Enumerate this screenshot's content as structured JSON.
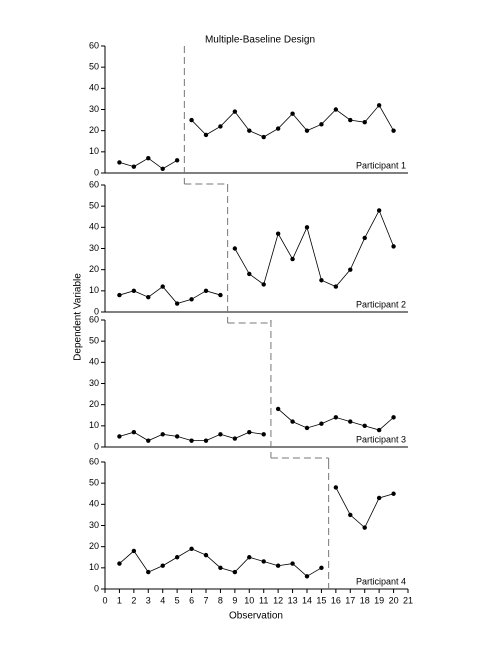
{
  "title": "Multiple-Baseline Design",
  "x_label": "Observation",
  "y_label": "Dependent Variable",
  "xlim": [
    0,
    21
  ],
  "xticks": [
    0,
    1,
    2,
    3,
    4,
    5,
    6,
    7,
    8,
    9,
    10,
    11,
    12,
    13,
    14,
    15,
    16,
    17,
    18,
    19,
    20,
    21
  ],
  "phase_changes": [
    5.5,
    8.5,
    11.5,
    15.5
  ],
  "chart_data": [
    {
      "type": "line",
      "label": "Participant 1",
      "color": "#000000",
      "ylim": [
        0,
        60
      ],
      "yticks": [
        0,
        10,
        20,
        30,
        40,
        50,
        60
      ],
      "series": [
        {
          "x": [
            1,
            2,
            3,
            4,
            5
          ],
          "values": [
            5,
            3,
            7,
            2,
            6
          ]
        },
        {
          "x": [
            6,
            7,
            8,
            9,
            10,
            11,
            12,
            13,
            14,
            15,
            16,
            17,
            18,
            19,
            20
          ],
          "values": [
            25,
            18,
            22,
            29,
            20,
            17,
            21,
            28,
            20,
            23,
            30,
            25,
            24,
            32,
            20
          ]
        }
      ]
    },
    {
      "type": "line",
      "label": "Participant 2",
      "color": "#000000",
      "ylim": [
        0,
        60
      ],
      "yticks": [
        0,
        10,
        20,
        30,
        40,
        50,
        60
      ],
      "series": [
        {
          "x": [
            1,
            2,
            3,
            4,
            5,
            6,
            7,
            8
          ],
          "values": [
            8,
            10,
            7,
            12,
            4,
            6,
            10,
            8
          ]
        },
        {
          "x": [
            9,
            10,
            11,
            12,
            13,
            14,
            15,
            16,
            17,
            18,
            19,
            20
          ],
          "values": [
            30,
            18,
            13,
            37,
            25,
            40,
            15,
            12,
            20,
            35,
            48,
            31
          ]
        }
      ]
    },
    {
      "type": "line",
      "label": "Participant 3",
      "color": "#000000",
      "ylim": [
        0,
        60
      ],
      "yticks": [
        0,
        10,
        20,
        30,
        40,
        50,
        60
      ],
      "series": [
        {
          "x": [
            1,
            2,
            3,
            4,
            5,
            6,
            7,
            8,
            9,
            10,
            11
          ],
          "values": [
            5,
            7,
            3,
            6,
            5,
            3,
            3,
            6,
            4,
            7,
            6
          ]
        },
        {
          "x": [
            12,
            13,
            14,
            15,
            16,
            17,
            18,
            19,
            20
          ],
          "values": [
            18,
            12,
            9,
            11,
            14,
            12,
            10,
            8,
            14
          ]
        }
      ]
    },
    {
      "type": "line",
      "label": "Participant 4",
      "color": "#000000",
      "ylim": [
        0,
        60
      ],
      "yticks": [
        0,
        10,
        20,
        30,
        40,
        50,
        60
      ],
      "series": [
        {
          "x": [
            1,
            2,
            3,
            4,
            5,
            6,
            7,
            8,
            9,
            10,
            11,
            12,
            13,
            14,
            15
          ],
          "values": [
            12,
            18,
            8,
            11,
            15,
            19,
            16,
            10,
            8,
            15,
            13,
            11,
            12,
            6,
            10
          ]
        },
        {
          "x": [
            16,
            17,
            18,
            19,
            20
          ],
          "values": [
            48,
            35,
            29,
            43,
            45
          ]
        }
      ]
    }
  ]
}
